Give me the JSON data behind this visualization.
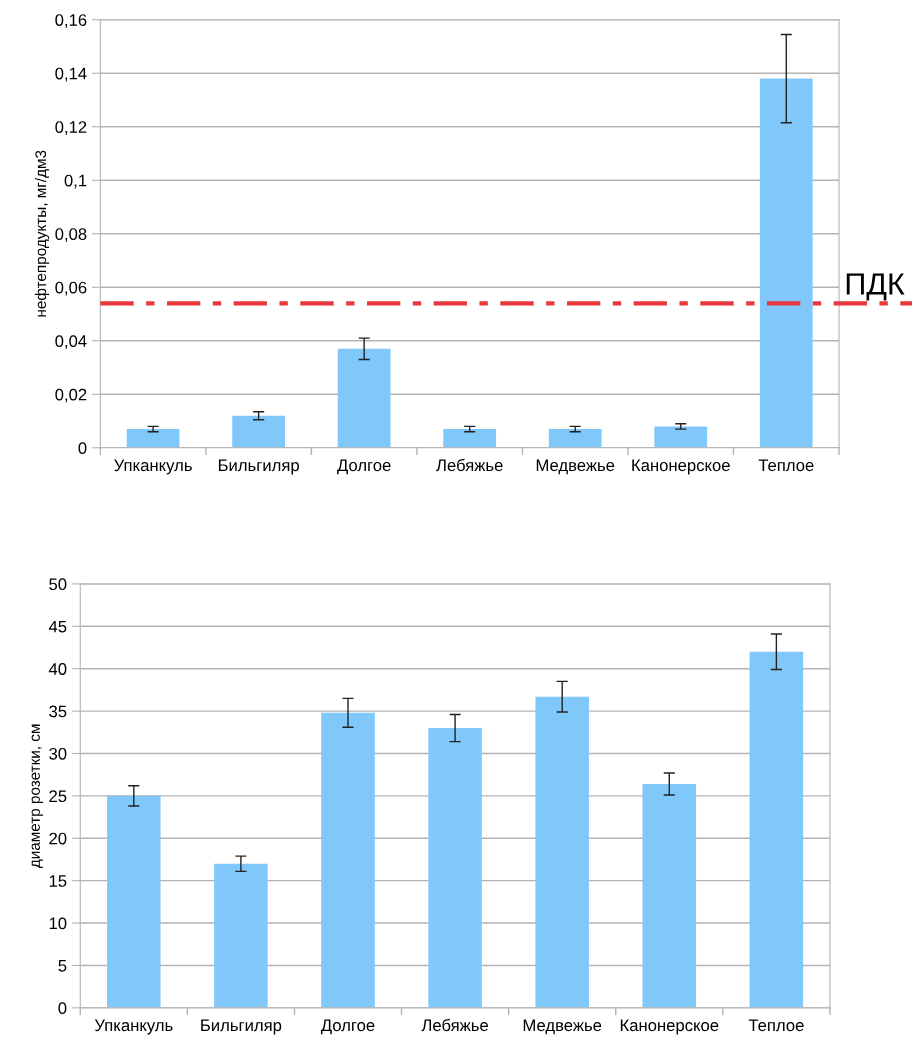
{
  "chart_data": [
    {
      "type": "bar",
      "ylabel": "нефтепродукты, мг/дм3",
      "categories": [
        "Упканкуль",
        "Бильгиляр",
        "Долгое",
        "Лебяжье",
        "Медвежье",
        "Канонерское",
        "Теплое"
      ],
      "series": [
        {
          "color": "#80c8fa",
          "values": [
            0.007,
            0.012,
            0.037,
            0.007,
            0.007,
            0.008,
            0.138
          ],
          "errors": [
            0.001,
            0.0015,
            0.004,
            0.001,
            0.001,
            0.001,
            0.0165
          ]
        }
      ],
      "ylim": [
        0,
        0.16
      ],
      "yticks": [
        0,
        {
          "value": 0.02,
          "label": "0,02"
        },
        {
          "value": 0.04,
          "label": "0,04"
        },
        {
          "value": 0.06,
          "label": "0,06"
        },
        {
          "value": 0.08,
          "label": "0,08"
        },
        {
          "value": 0.1,
          "label": "0,1"
        },
        {
          "value": 0.12,
          "label": "0,12"
        },
        {
          "value": 0.14,
          "label": "0,14"
        },
        {
          "value": 0.16,
          "label": "0,16"
        }
      ],
      "grid": "y",
      "ref_lines": [
        {
          "axis": "y",
          "value": 0.054,
          "label": "ПДК",
          "color": "#e8383d",
          "line_style": "dashdot"
        }
      ]
    },
    {
      "type": "bar",
      "ylabel": "диаметр розетки, см",
      "categories": [
        "Упканкуль",
        "Бильгиляр",
        "Долгое",
        "Лебяжье",
        "Медвежье",
        "Канонерское",
        "Теплое"
      ],
      "series": [
        {
          "color": "#80c8fa",
          "values": [
            25,
            17,
            34.8,
            33,
            36.7,
            26.4,
            42
          ],
          "errors": [
            1.2,
            0.9,
            1.7,
            1.6,
            1.8,
            1.3,
            2.1
          ]
        }
      ],
      "ylim": [
        0,
        50
      ],
      "yticks": [
        0,
        5,
        10,
        15,
        20,
        25,
        30,
        35,
        40,
        45,
        50
      ],
      "grid": "y"
    }
  ]
}
